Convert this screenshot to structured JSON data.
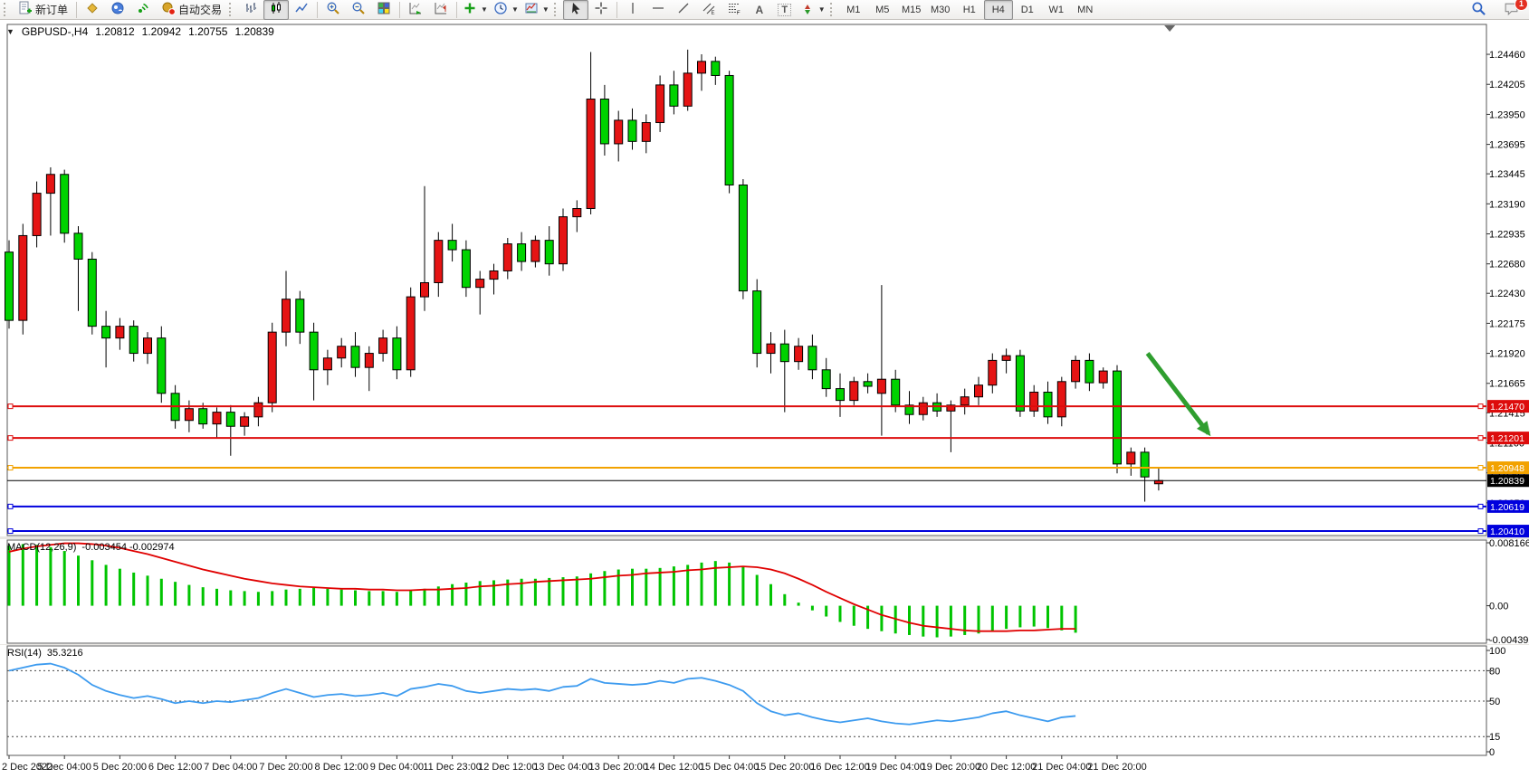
{
  "toolbar": {
    "new_order": "新订单",
    "auto_trading": "自动交易",
    "text_tool": "A",
    "label_tool": "T",
    "channel_sub": "E",
    "fibo_sub": "F",
    "timeframes": [
      "M1",
      "M5",
      "M15",
      "M30",
      "H1",
      "H4",
      "D1",
      "W1",
      "MN"
    ],
    "active_timeframe": "H4",
    "notification_badge": "1"
  },
  "chart_header": {
    "symbol_period": "GBPUSD-,H4",
    "open": "1.20812",
    "high": "1.20942",
    "low": "1.20755",
    "close": "1.20839"
  },
  "chart_data": [
    {
      "type": "candlestick",
      "title": "GBPUSD- H4 price panel",
      "ylim": [
        1.20372,
        1.24714
      ],
      "y_ticks": [
        "1.24460",
        "1.24205",
        "1.23950",
        "1.23695",
        "1.23445",
        "1.23190",
        "1.22935",
        "1.22680",
        "1.22430",
        "1.22175",
        "1.21920",
        "1.21665",
        "1.21415",
        "1.21160",
        "1.20905",
        "1.20650"
      ],
      "x_labels": [
        "2 Dec 2022",
        "5 Dec 04:00",
        "5 Dec 20:00",
        "6 Dec 12:00",
        "7 Dec 04:00",
        "7 Dec 20:00",
        "8 Dec 12:00",
        "9 Dec 04:00",
        "11 Dec 23:00",
        "12 Dec 12:00",
        "13 Dec 04:00",
        "13 Dec 20:00",
        "14 Dec 12:00",
        "15 Dec 04:00",
        "15 Dec 20:00",
        "16 Dec 12:00",
        "19 Dec 04:00",
        "19 Dec 20:00",
        "20 Dec 12:00",
        "21 Dec 04:00",
        "21 Dec 20:00"
      ],
      "x_label_every": 4,
      "up_color": "#e51414",
      "down_color": "#00d300",
      "candles": [
        [
          1.2278,
          1.2288,
          1.2213,
          1.222
        ],
        [
          1.222,
          1.2302,
          1.2208,
          1.2292
        ],
        [
          1.2292,
          1.2338,
          1.2282,
          1.2328
        ],
        [
          1.2328,
          1.235,
          1.2292,
          1.2344
        ],
        [
          1.2344,
          1.2348,
          1.2286,
          1.2294
        ],
        [
          1.2294,
          1.23,
          1.2228,
          1.2272
        ],
        [
          1.2272,
          1.2278,
          1.2208,
          1.2215
        ],
        [
          1.2215,
          1.2228,
          1.218,
          1.2205
        ],
        [
          1.2205,
          1.2222,
          1.2195,
          1.2215
        ],
        [
          1.2215,
          1.222,
          1.2185,
          1.2192
        ],
        [
          1.2192,
          1.221,
          1.2183,
          1.2205
        ],
        [
          1.2205,
          1.2215,
          1.215,
          1.2158
        ],
        [
          1.2158,
          1.2165,
          1.2128,
          1.2135
        ],
        [
          1.2135,
          1.2152,
          1.2125,
          1.2145
        ],
        [
          1.2145,
          1.215,
          1.2128,
          1.2132
        ],
        [
          1.2132,
          1.2146,
          1.212,
          1.2142
        ],
        [
          1.2142,
          1.2148,
          1.2105,
          1.213
        ],
        [
          1.213,
          1.2142,
          1.2122,
          1.2138
        ],
        [
          1.2138,
          1.2155,
          1.213,
          1.215
        ],
        [
          1.215,
          1.2218,
          1.2142,
          1.221
        ],
        [
          1.221,
          1.2262,
          1.2198,
          1.2238
        ],
        [
          1.2238,
          1.2245,
          1.22,
          1.221
        ],
        [
          1.221,
          1.2218,
          1.2152,
          1.2178
        ],
        [
          1.2178,
          1.2195,
          1.2165,
          1.2188
        ],
        [
          1.2188,
          1.2205,
          1.218,
          1.2198
        ],
        [
          1.2198,
          1.221,
          1.2172,
          1.218
        ],
        [
          1.218,
          1.2198,
          1.216,
          1.2192
        ],
        [
          1.2192,
          1.2212,
          1.2185,
          1.2205
        ],
        [
          1.2205,
          1.2215,
          1.217,
          1.2178
        ],
        [
          1.2178,
          1.2248,
          1.2172,
          1.224
        ],
        [
          1.224,
          1.2334,
          1.2228,
          1.2252
        ],
        [
          1.2252,
          1.2295,
          1.224,
          1.2288
        ],
        [
          1.2288,
          1.2302,
          1.227,
          1.228
        ],
        [
          1.228,
          1.2288,
          1.224,
          1.2248
        ],
        [
          1.2248,
          1.2262,
          1.2225,
          1.2255
        ],
        [
          1.2255,
          1.2268,
          1.2242,
          1.2262
        ],
        [
          1.2262,
          1.229,
          1.2255,
          1.2285
        ],
        [
          1.2285,
          1.2295,
          1.2262,
          1.227
        ],
        [
          1.227,
          1.2292,
          1.2265,
          1.2288
        ],
        [
          1.2288,
          1.23,
          1.2258,
          1.2268
        ],
        [
          1.2268,
          1.2315,
          1.2262,
          1.2308
        ],
        [
          1.2308,
          1.2322,
          1.2295,
          1.2315
        ],
        [
          1.2315,
          1.2448,
          1.231,
          1.2408
        ],
        [
          1.2408,
          1.242,
          1.236,
          1.237
        ],
        [
          1.237,
          1.2398,
          1.2355,
          1.239
        ],
        [
          1.239,
          1.24,
          1.2365,
          1.2372
        ],
        [
          1.2372,
          1.2395,
          1.2362,
          1.2388
        ],
        [
          1.2388,
          1.2428,
          1.238,
          1.242
        ],
        [
          1.242,
          1.2432,
          1.2395,
          1.2402
        ],
        [
          1.2402,
          1.245,
          1.2398,
          1.243
        ],
        [
          1.243,
          1.2446,
          1.2415,
          1.244
        ],
        [
          1.244,
          1.2444,
          1.242,
          1.2428
        ],
        [
          1.2428,
          1.2432,
          1.2328,
          1.2335
        ],
        [
          1.2335,
          1.234,
          1.2238,
          1.2245
        ],
        [
          1.2245,
          1.2255,
          1.218,
          1.2192
        ],
        [
          1.2192,
          1.221,
          1.2175,
          1.22
        ],
        [
          1.22,
          1.2212,
          1.2142,
          1.2185
        ],
        [
          1.2185,
          1.2205,
          1.2178,
          1.2198
        ],
        [
          1.2198,
          1.2208,
          1.217,
          1.2178
        ],
        [
          1.2178,
          1.2188,
          1.2155,
          1.2162
        ],
        [
          1.2162,
          1.2175,
          1.2138,
          1.2152
        ],
        [
          1.2152,
          1.2172,
          1.2148,
          1.2168
        ],
        [
          1.2168,
          1.2175,
          1.2158,
          1.2164
        ],
        [
          1.2158,
          1.225,
          1.2122,
          1.217
        ],
        [
          1.217,
          1.2178,
          1.2142,
          1.2148
        ],
        [
          1.2148,
          1.216,
          1.2132,
          1.214
        ],
        [
          1.214,
          1.2155,
          1.2135,
          1.215
        ],
        [
          1.215,
          1.2158,
          1.2138,
          1.2143
        ],
        [
          1.2143,
          1.2152,
          1.2108,
          1.2148
        ],
        [
          1.2148,
          1.2162,
          1.214,
          1.2155
        ],
        [
          1.2155,
          1.2172,
          1.2148,
          1.2165
        ],
        [
          1.2165,
          1.2192,
          1.2158,
          1.2186
        ],
        [
          1.2186,
          1.2196,
          1.2175,
          1.219
        ],
        [
          1.219,
          1.2195,
          1.2138,
          1.2143
        ],
        [
          1.2143,
          1.2165,
          1.2138,
          1.2159
        ],
        [
          1.2159,
          1.2168,
          1.2132,
          1.2138
        ],
        [
          1.2138,
          1.2172,
          1.213,
          1.2168
        ],
        [
          1.2168,
          1.219,
          1.2162,
          1.2186
        ],
        [
          1.2186,
          1.2192,
          1.216,
          1.2167
        ],
        [
          1.2167,
          1.218,
          1.2162,
          1.2177
        ],
        [
          1.2177,
          1.2182,
          1.209,
          1.2098
        ],
        [
          1.2098,
          1.2112,
          1.2088,
          1.2108
        ],
        [
          1.2108,
          1.2112,
          1.2066,
          1.2087
        ],
        [
          1.20812,
          1.20942,
          1.20755,
          1.20839
        ]
      ],
      "hlines": [
        {
          "price": 1.2147,
          "label": "1.21470",
          "color": "#dd0c0c"
        },
        {
          "price": 1.21201,
          "label": "1.21201",
          "color": "#dd0c0c"
        },
        {
          "price": 1.20948,
          "label": "1.20948",
          "color": "#f2a200"
        },
        {
          "price": 1.20619,
          "label": "1.20619",
          "color": "#0000dd"
        },
        {
          "price": 1.2041,
          "label": "1.20410",
          "color": "#0000dd"
        }
      ],
      "current_price": {
        "price": 1.20839,
        "label": "1.20839",
        "color": "#000000"
      },
      "annotation_arrow": {
        "from_index": 82.2,
        "from_price": 1.2192,
        "to_index": 86.6,
        "to_price": 1.2124,
        "color": "#2f9e2f"
      },
      "grid": false
    },
    {
      "type": "bar",
      "title": "MACD(12,26,9)",
      "current_values": "-0.003454 -0.002974",
      "ylim": [
        -0.004392,
        0.008166
      ],
      "y_ticks": [
        "0.008166",
        "0.00",
        "-0.004392"
      ],
      "hist_color": "#00c400",
      "signal_color": "#e00000",
      "histogram": [
        0.0078,
        0.008,
        0.0079,
        0.0076,
        0.0071,
        0.0065,
        0.0059,
        0.0053,
        0.0048,
        0.0043,
        0.0039,
        0.0035,
        0.0031,
        0.0027,
        0.0024,
        0.0022,
        0.002,
        0.0019,
        0.0018,
        0.0019,
        0.0021,
        0.0022,
        0.0023,
        0.0022,
        0.0021,
        0.002,
        0.0019,
        0.0019,
        0.0018,
        0.002,
        0.0022,
        0.0025,
        0.0028,
        0.003,
        0.0032,
        0.0033,
        0.0034,
        0.0035,
        0.0035,
        0.0036,
        0.0037,
        0.0038,
        0.0042,
        0.0045,
        0.0047,
        0.0048,
        0.0048,
        0.0049,
        0.0051,
        0.0053,
        0.0056,
        0.0058,
        0.0056,
        0.005,
        0.004,
        0.0028,
        0.0015,
        0.0004,
        -0.0006,
        -0.0014,
        -0.0021,
        -0.0026,
        -0.003,
        -0.0033,
        -0.0036,
        -0.0038,
        -0.004,
        -0.0041,
        -0.004,
        -0.0038,
        -0.0036,
        -0.0033,
        -0.003,
        -0.0028,
        -0.0027,
        -0.0029,
        -0.0032,
        -0.0035
      ],
      "signal": [
        0.007,
        0.0074,
        0.0077,
        0.0079,
        0.0081,
        0.0081,
        0.008,
        0.0078,
        0.0075,
        0.0071,
        0.0067,
        0.0062,
        0.0057,
        0.0052,
        0.0047,
        0.0043,
        0.0039,
        0.0035,
        0.0032,
        0.0029,
        0.0027,
        0.0025,
        0.0024,
        0.0023,
        0.0022,
        0.0022,
        0.0021,
        0.0021,
        0.002,
        0.002,
        0.0021,
        0.0021,
        0.0022,
        0.0023,
        0.0025,
        0.0026,
        0.0028,
        0.0029,
        0.0031,
        0.0032,
        0.0033,
        0.0034,
        0.0035,
        0.0037,
        0.0039,
        0.004,
        0.0042,
        0.0043,
        0.0044,
        0.0046,
        0.0047,
        0.0049,
        0.005,
        0.0051,
        0.005,
        0.0047,
        0.0042,
        0.0035,
        0.0027,
        0.0018,
        0.001,
        0.0002,
        -0.0005,
        -0.0012,
        -0.0017,
        -0.0022,
        -0.0026,
        -0.0028,
        -0.003,
        -0.0032,
        -0.0033,
        -0.0033,
        -0.0033,
        -0.0032,
        -0.0032,
        -0.0031,
        -0.003,
        -0.003
      ]
    },
    {
      "type": "line",
      "title": "RSI(14)",
      "current_value": "35.3216",
      "ylim": [
        0,
        100
      ],
      "levels": [
        100,
        80,
        50,
        15,
        0
      ],
      "dashed_levels": [
        80,
        50,
        15
      ],
      "color": "#3d9bef",
      "series": [
        80,
        83,
        86,
        87,
        83,
        76,
        66,
        60,
        56,
        53,
        55,
        52,
        48,
        50,
        48,
        50,
        49,
        51,
        53,
        58,
        62,
        58,
        54,
        56,
        57,
        55,
        56,
        58,
        55,
        62,
        64,
        67,
        65,
        60,
        58,
        60,
        62,
        61,
        62,
        60,
        64,
        65,
        72,
        68,
        67,
        66,
        67,
        70,
        68,
        72,
        73,
        70,
        66,
        60,
        48,
        40,
        36,
        38,
        34,
        31,
        29,
        31,
        33,
        30,
        28,
        27,
        29,
        31,
        30,
        32,
        34,
        38,
        40,
        36,
        33,
        30,
        34,
        35.32
      ]
    }
  ]
}
